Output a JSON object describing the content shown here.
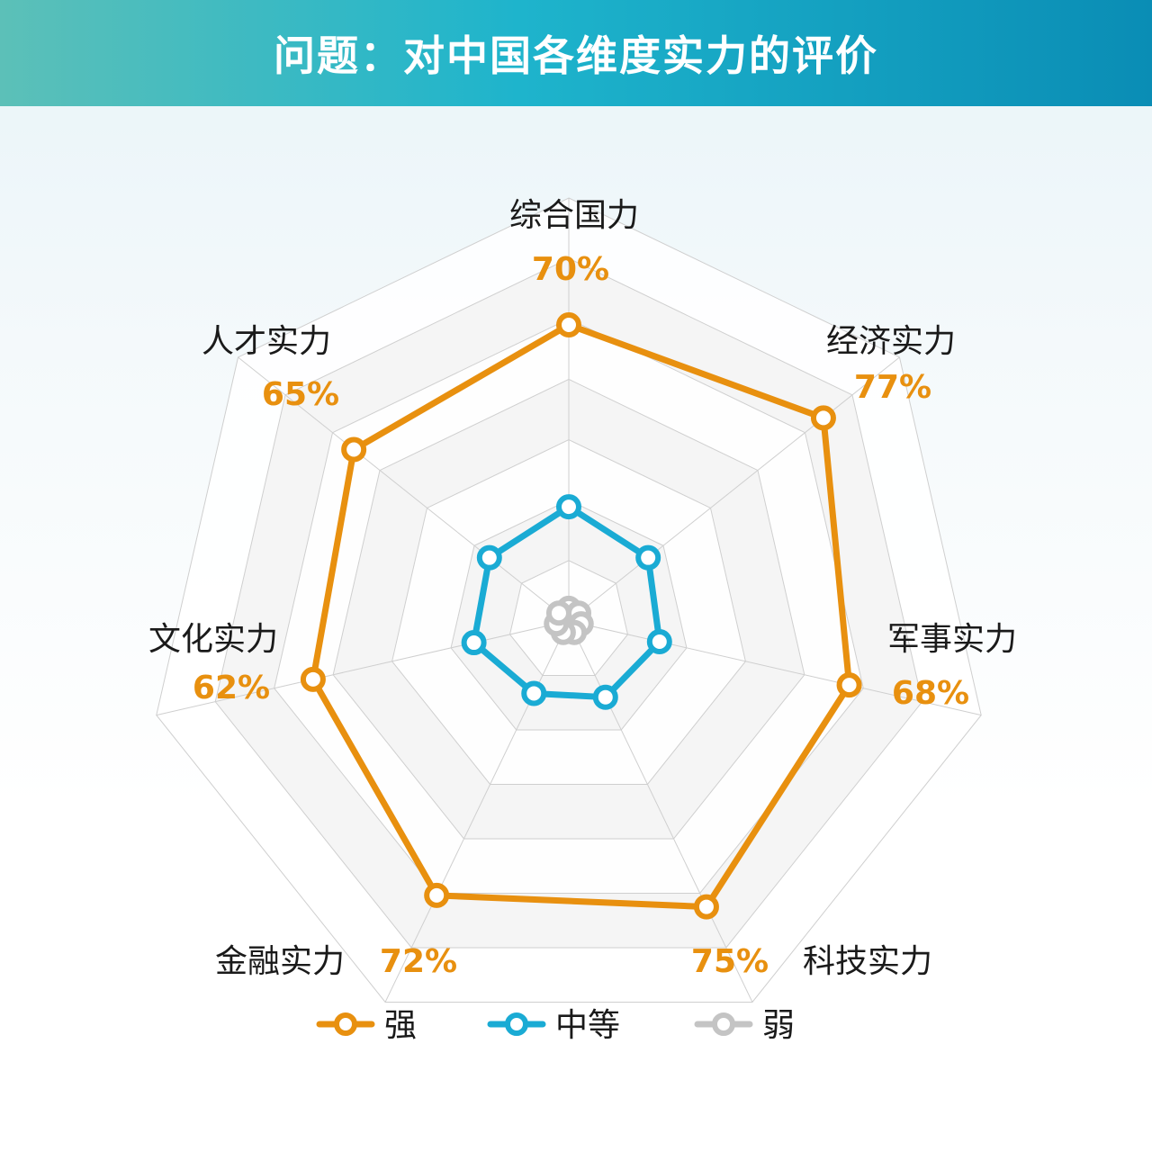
{
  "header": {
    "title": "问题：对中国各维度实力的评价"
  },
  "colors": {
    "strong": "#e8900f",
    "medium": "#1aabd4",
    "weak": "#c4c4c4",
    "label": "#1a1a1a",
    "grid": "#cfcfcf",
    "band": "#f3f3f3"
  },
  "chart_data": {
    "type": "radar",
    "title": "问题：对中国各维度实力的评价",
    "axes": [
      "综合国力",
      "经济实力",
      "军事实力",
      "科技实力",
      "金融实力",
      "文化实力",
      "人才实力"
    ],
    "range": [
      0,
      100
    ],
    "grid_levels": 7,
    "legend_position": "bottom",
    "series": [
      {
        "name": "强",
        "values": [
          70,
          77,
          68,
          75,
          72,
          62,
          65
        ],
        "labels": [
          "70%",
          "77%",
          "68%",
          "75%",
          "72%",
          "62%",
          "65%"
        ],
        "color": "#e8900f"
      },
      {
        "name": "中等",
        "values": [
          27,
          24,
          22,
          20,
          19,
          23,
          24
        ],
        "color": "#1aabd4"
      },
      {
        "name": "弱",
        "values": [
          3,
          3,
          3,
          3,
          3,
          3,
          3
        ],
        "color": "#c4c4c4"
      }
    ]
  }
}
